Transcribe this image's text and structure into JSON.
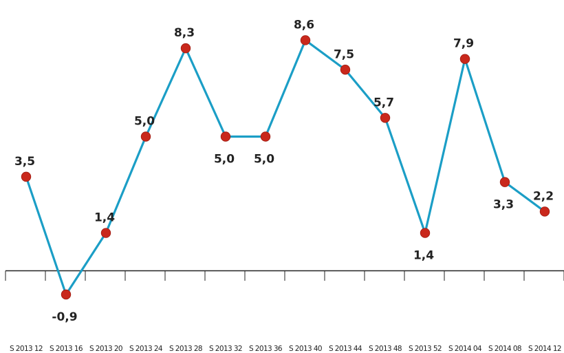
{
  "chart_data": {
    "type": "line",
    "title": "",
    "xlabel": "",
    "ylabel": "",
    "categories": [
      "S 2013 12",
      "S 2013 16",
      "S 2013 20",
      "S 2013 24",
      "S 2013 28",
      "S 2013 32",
      "S 2013 36",
      "S 2013 40",
      "S 2013 44",
      "S 2013 48",
      "S 2013 52",
      "S 2014 04",
      "S 2014 08",
      "S 2014 12"
    ],
    "values": [
      3.5,
      -0.9,
      1.4,
      5.0,
      8.3,
      5.0,
      5.0,
      8.6,
      7.5,
      5.7,
      1.4,
      7.9,
      3.3,
      2.2
    ],
    "data_labels": [
      "3,5",
      "-0,9",
      "1,4",
      "5,0",
      "8,3",
      "5,0",
      "5,0",
      "8,6",
      "7,5",
      "5,7",
      "1,4",
      "7,9",
      "3,3",
      "2,2"
    ],
    "label_position": [
      "above",
      "below",
      "above",
      "above",
      "above",
      "below",
      "below",
      "above",
      "above",
      "above",
      "below",
      "above",
      "below",
      "above"
    ],
    "grid": false,
    "legend": "none",
    "colors": {
      "line": "#1b9ec6",
      "marker": "#c9281c",
      "marker_edge": "#9e1a10",
      "axis": "#222222",
      "text": "#222222"
    }
  }
}
